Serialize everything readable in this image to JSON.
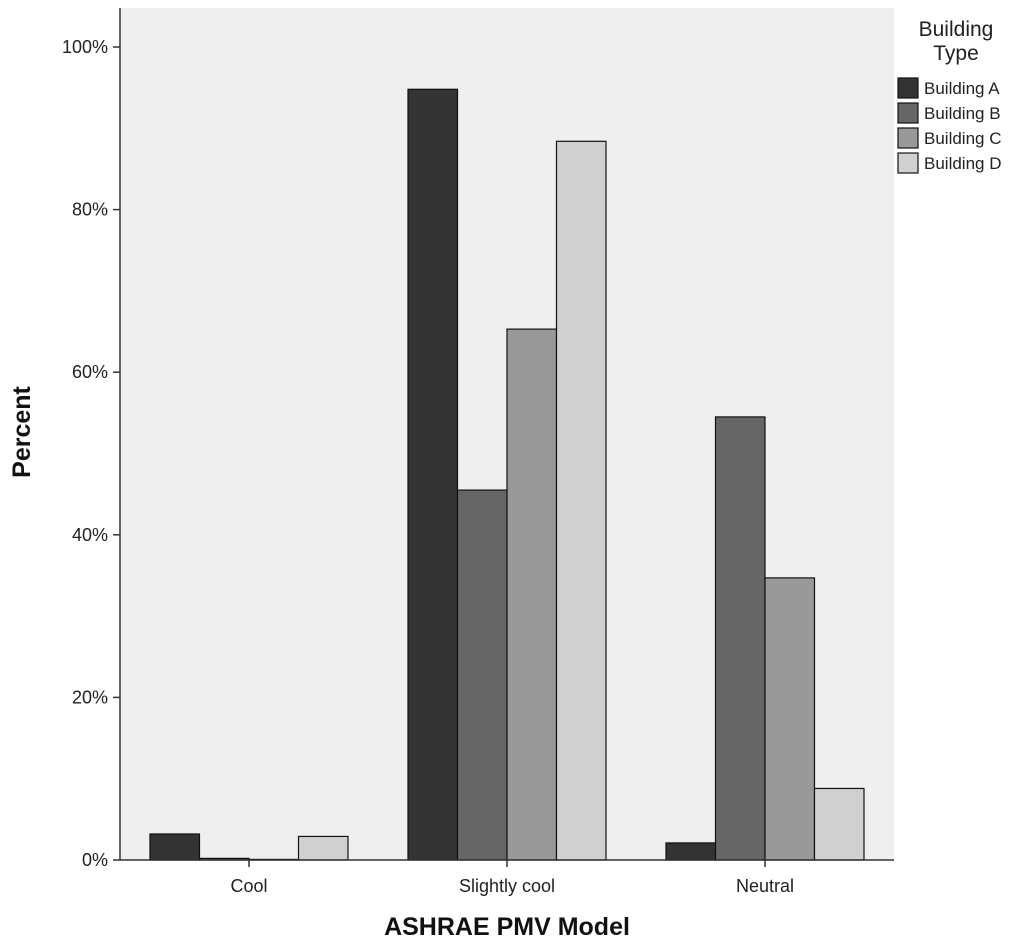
{
  "chart_data": {
    "type": "bar",
    "xlabel": "ASHRAE PMV Model",
    "ylabel": "Percent",
    "categories": [
      "Cool",
      "Slightly cool",
      "Neutral"
    ],
    "ylim": [
      0,
      100
    ],
    "yticks": [
      "0%",
      "20%",
      "40%",
      "60%",
      "80%",
      "100%"
    ],
    "grid": false,
    "legend": {
      "title_lines": [
        "Building",
        "Type"
      ],
      "placement": "right"
    },
    "series": [
      {
        "name": "Building A",
        "color": "#333333",
        "values": [
          3.2,
          94.8,
          2.1
        ]
      },
      {
        "name": "Building B",
        "color": "#666666",
        "values": [
          0.2,
          45.5,
          54.5
        ]
      },
      {
        "name": "Building C",
        "color": "#999999",
        "values": [
          0.0,
          65.3,
          34.7
        ]
      },
      {
        "name": "Building D",
        "color": "#d0d0d0",
        "values": [
          2.9,
          88.4,
          8.8
        ]
      }
    ]
  }
}
